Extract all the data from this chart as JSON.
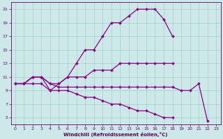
{
  "xlabel": "Windchill (Refroidissement éolien,°C)",
  "background_color": "#cce8e8",
  "line_color": "#880088",
  "grid_color": "#aacccc",
  "xlim": [
    -0.5,
    23.5
  ],
  "ylim": [
    4,
    22
  ],
  "yticks": [
    5,
    7,
    9,
    11,
    13,
    15,
    17,
    19,
    21
  ],
  "xticks": [
    0,
    1,
    2,
    3,
    4,
    5,
    6,
    7,
    8,
    9,
    10,
    11,
    12,
    13,
    14,
    15,
    16,
    17,
    18,
    19,
    20,
    21,
    22,
    23
  ],
  "curves": [
    {
      "x": [
        0,
        1,
        2,
        3,
        4,
        5,
        6,
        7,
        8,
        9,
        10,
        11,
        12,
        13,
        14,
        15,
        16,
        17,
        18
      ],
      "y": [
        10,
        10,
        11,
        11,
        9,
        10,
        11,
        13,
        15,
        15,
        17,
        19,
        19,
        20,
        21,
        21,
        21,
        19.5,
        17
      ]
    },
    {
      "x": [
        0,
        1,
        2,
        3,
        4,
        5,
        6,
        7,
        8,
        9,
        10,
        11,
        12,
        13,
        14,
        15,
        16,
        17,
        18
      ],
      "y": [
        10,
        10,
        11,
        11,
        10,
        10,
        11,
        11,
        11,
        12,
        12,
        12,
        13,
        13,
        13,
        13,
        13,
        13,
        13
      ]
    },
    {
      "x": [
        0,
        1,
        2,
        3,
        4,
        5,
        6,
        7,
        8,
        9,
        10,
        11,
        12,
        13,
        14,
        15,
        16,
        17,
        18,
        19,
        20,
        21,
        22
      ],
      "y": [
        10,
        10,
        11,
        11,
        10,
        9.5,
        9.5,
        9.5,
        9.5,
        9.5,
        9.5,
        9.5,
        9.5,
        9.5,
        9.5,
        9.5,
        9.5,
        9.5,
        9.5,
        9,
        9,
        10,
        4.5
      ]
    },
    {
      "x": [
        0,
        1,
        2,
        3,
        4,
        5,
        6,
        7,
        8,
        9,
        10,
        11,
        12,
        13,
        14,
        15,
        16,
        17,
        18
      ],
      "y": [
        10,
        10,
        10,
        10,
        9,
        9,
        9,
        8.5,
        8,
        8,
        7.5,
        7,
        7,
        6.5,
        6,
        6,
        5.5,
        5,
        5
      ]
    }
  ]
}
